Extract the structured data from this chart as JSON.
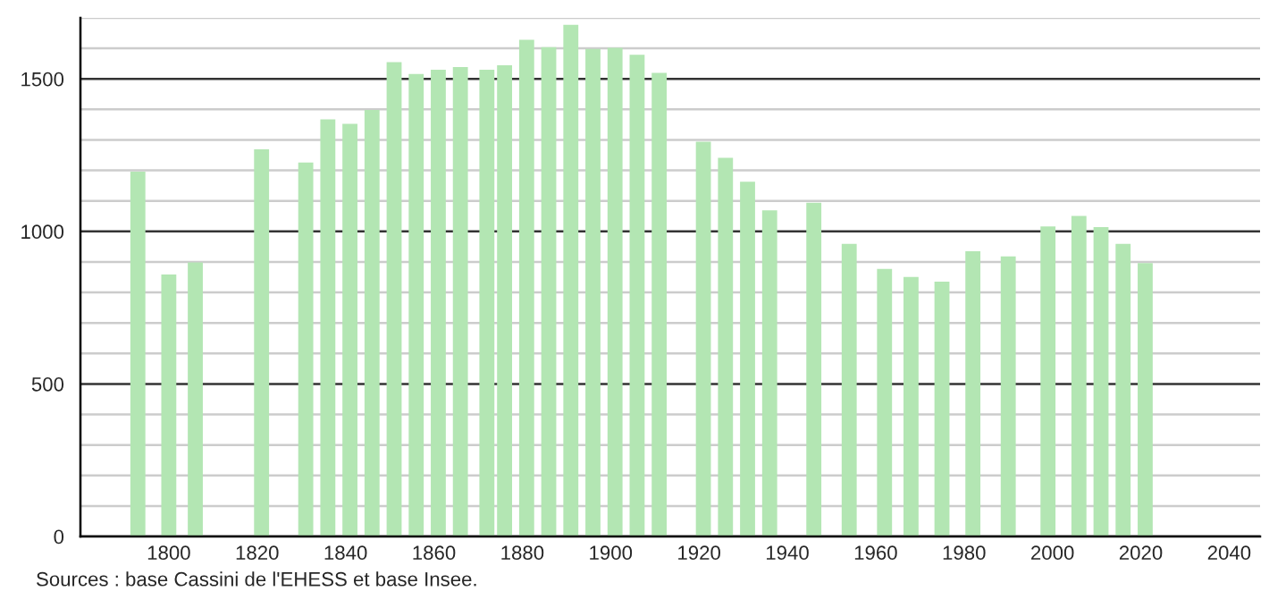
{
  "chart_data": {
    "type": "bar",
    "x": [
      1793,
      1800,
      1806,
      1821,
      1831,
      1836,
      1841,
      1846,
      1851,
      1856,
      1861,
      1866,
      1872,
      1876,
      1881,
      1886,
      1891,
      1896,
      1901,
      1906,
      1911,
      1921,
      1926,
      1931,
      1936,
      1946,
      1954,
      1962,
      1968,
      1975,
      1982,
      1990,
      1999,
      2006,
      2011,
      2016,
      2021
    ],
    "series": [
      {
        "color": "#b3e6b3",
        "values": [
          1196,
          859,
          898,
          1269,
          1226,
          1367,
          1353,
          1398,
          1555,
          1516,
          1530,
          1539,
          1530,
          1545,
          1628,
          1604,
          1677,
          1598,
          1602,
          1579,
          1520,
          1294,
          1241,
          1163,
          1069,
          1094,
          959,
          877,
          851,
          835,
          935,
          918,
          1016,
          1051,
          1014,
          959,
          896
        ]
      }
    ],
    "xlim": [
      1780,
      2047
    ],
    "xticks": [
      1800,
      1820,
      1840,
      1860,
      1880,
      1900,
      1920,
      1940,
      1960,
      1980,
      2000,
      2020,
      2040
    ],
    "ylim": [
      0,
      1700
    ],
    "yticks": [
      0,
      {
        "value": 100,
        "label": null
      },
      {
        "value": 200,
        "label": null
      },
      {
        "value": 300,
        "label": null
      },
      {
        "value": 400,
        "label": null
      },
      500,
      {
        "value": 600,
        "label": null
      },
      {
        "value": 700,
        "label": null
      },
      {
        "value": 800,
        "label": null
      },
      {
        "value": 900,
        "label": null
      },
      1000,
      {
        "value": 1100,
        "label": null
      },
      {
        "value": 1200,
        "label": null
      },
      {
        "value": 1300,
        "label": null
      },
      {
        "value": 1400,
        "label": null
      },
      1500,
      {
        "value": 1600,
        "label": null
      },
      {
        "value": 1700,
        "label": null
      }
    ],
    "grid": "y",
    "annotations": [
      "Sources : base Cassini de l'EHESS et base Insee."
    ]
  }
}
